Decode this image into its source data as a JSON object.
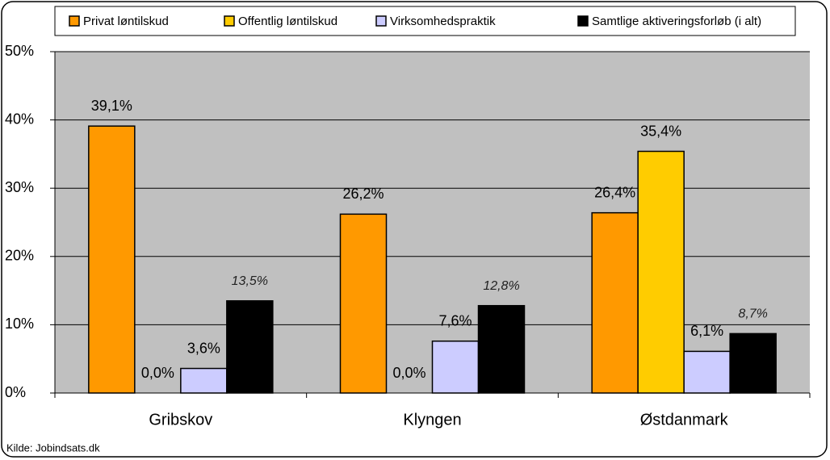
{
  "chart_data": {
    "type": "bar",
    "categories": [
      "Gribskov",
      "Klyngen",
      "Østdanmark"
    ],
    "series": [
      {
        "name": "Privat løntilskud",
        "color": "#ff9900",
        "values": [
          39.1,
          26.2,
          26.4
        ],
        "value_labels": [
          "39,1%",
          "26,2%",
          "26,4%"
        ]
      },
      {
        "name": "Offentlig løntilskud",
        "color": "#ffcc00",
        "values": [
          0.0,
          0.0,
          35.4
        ],
        "value_labels": [
          "0,0%",
          "0,0%",
          "35,4%"
        ]
      },
      {
        "name": "Virksomhedspraktik",
        "color": "#ccccff",
        "values": [
          3.6,
          7.6,
          6.1
        ],
        "value_labels": [
          "3,6%",
          "7,6%",
          "6,1%"
        ]
      },
      {
        "name": "Samtlige aktiveringsforløb (i alt)",
        "color": "#000000",
        "values": [
          13.5,
          12.8,
          8.7
        ],
        "value_labels": [
          "13,5%",
          "12,8%",
          "8,7%"
        ]
      }
    ],
    "ylim": [
      0,
      50
    ],
    "yticks": [
      {
        "value": 0,
        "label": "0%"
      },
      {
        "value": 10,
        "label": "10%"
      },
      {
        "value": 20,
        "label": "20%"
      },
      {
        "value": 30,
        "label": "30%"
      },
      {
        "value": 40,
        "label": "40%"
      },
      {
        "value": 50,
        "label": "50%"
      }
    ],
    "grid": true,
    "legend": "top",
    "source": "Kilde: Jobindsats.dk"
  }
}
